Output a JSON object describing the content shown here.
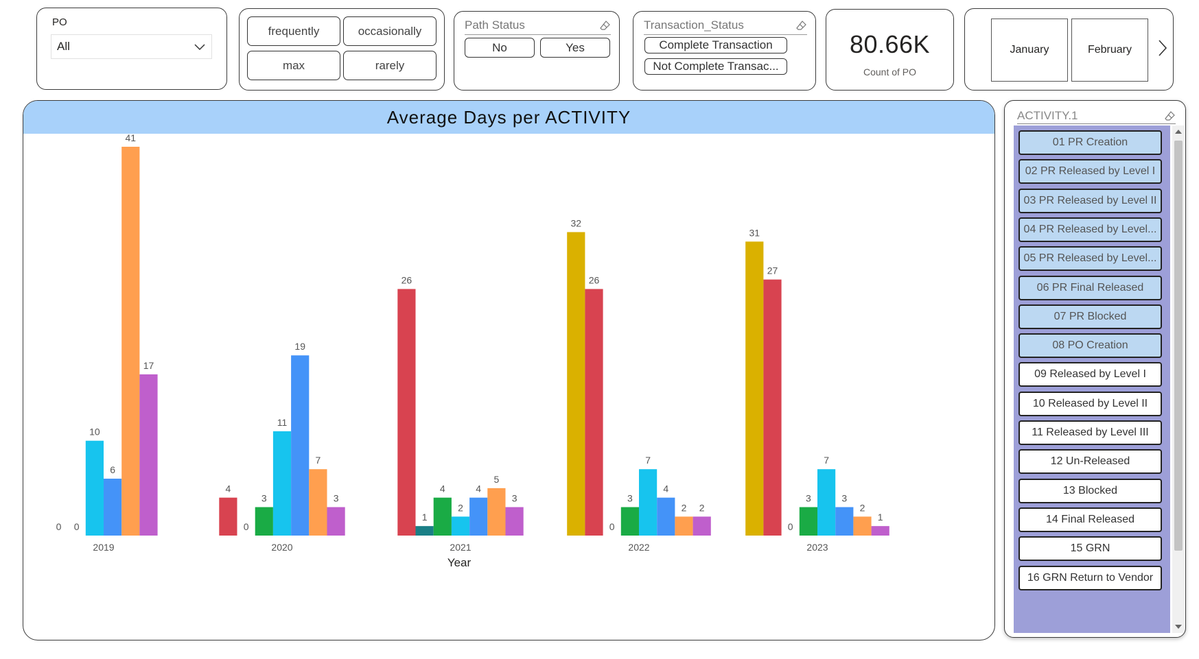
{
  "po_filter": {
    "label": "PO",
    "value": "All"
  },
  "frequency_buttons": [
    "frequently",
    "occasionally",
    "max",
    "rarely"
  ],
  "path_status": {
    "title": "Path Status",
    "options": [
      "No",
      "Yes"
    ]
  },
  "transaction_status": {
    "title": "Transaction_Status",
    "options": [
      "Complete Transaction",
      "Not Complete Transac..."
    ]
  },
  "kpi": {
    "value": "80.66K",
    "label": "Count of PO"
  },
  "months": [
    "January",
    "February"
  ],
  "activity_panel": {
    "title": "ACTIVITY.1",
    "items": [
      {
        "label": "01 PR Creation",
        "selected": true
      },
      {
        "label": "02 PR Released by Level I",
        "selected": true
      },
      {
        "label": "03 PR Released by Level II",
        "selected": true
      },
      {
        "label": "04 PR Released by Level...",
        "selected": true
      },
      {
        "label": "05 PR Released by Level...",
        "selected": true
      },
      {
        "label": "06 PR Final Released",
        "selected": true
      },
      {
        "label": "07 PR Blocked",
        "selected": true
      },
      {
        "label": "08 PO Creation",
        "selected": true
      },
      {
        "label": "09 Released by Level I",
        "selected": false
      },
      {
        "label": "10 Released by Level II",
        "selected": false
      },
      {
        "label": "11 Released by Level III",
        "selected": false
      },
      {
        "label": "12 Un-Released",
        "selected": false
      },
      {
        "label": "13 Blocked",
        "selected": false
      },
      {
        "label": "14 Final Released",
        "selected": false
      },
      {
        "label": "15 GRN",
        "selected": false
      },
      {
        "label": "16 GRN Return to Vendor",
        "selected": false
      }
    ],
    "selected_color": "#bcd8f2",
    "unselected_color": "#ffffff"
  },
  "chart_data": {
    "type": "bar",
    "title": "Average Days per ACTIVITY",
    "xlabel": "Year",
    "ylabel": "",
    "categories": [
      "2019",
      "2020",
      "2021",
      "2022",
      "2023"
    ],
    "groups": [
      {
        "category": "2019",
        "bars": [
          {
            "value": 0,
            "color": "#1a7f86"
          },
          {
            "value": 0,
            "color": "#1aab45"
          },
          {
            "value": 10,
            "color": "#17c4ee"
          },
          {
            "value": 6,
            "color": "#4493f8"
          },
          {
            "value": 41,
            "color": "#ff9f4f"
          },
          {
            "value": 17,
            "color": "#bf5fcc"
          }
        ]
      },
      {
        "category": "2020",
        "bars": [
          {
            "value": 4,
            "color": "#d84350"
          },
          {
            "value": 0,
            "color": "#1a7f86"
          },
          {
            "value": 3,
            "color": "#1aab45"
          },
          {
            "value": 11,
            "color": "#17c4ee"
          },
          {
            "value": 19,
            "color": "#4493f8"
          },
          {
            "value": 7,
            "color": "#ff9f4f"
          },
          {
            "value": 3,
            "color": "#bf5fcc"
          }
        ]
      },
      {
        "category": "2021",
        "bars": [
          {
            "value": 26,
            "color": "#d84350"
          },
          {
            "value": 1,
            "color": "#1a7f86"
          },
          {
            "value": 4,
            "color": "#1aab45"
          },
          {
            "value": 2,
            "color": "#17c4ee"
          },
          {
            "value": 4,
            "color": "#4493f8"
          },
          {
            "value": 5,
            "color": "#ff9f4f"
          },
          {
            "value": 3,
            "color": "#bf5fcc"
          }
        ]
      },
      {
        "category": "2022",
        "bars": [
          {
            "value": 32,
            "color": "#dab100"
          },
          {
            "value": 26,
            "color": "#d84350"
          },
          {
            "value": 0,
            "color": "#1a7f86"
          },
          {
            "value": 3,
            "color": "#1aab45"
          },
          {
            "value": 7,
            "color": "#17c4ee"
          },
          {
            "value": 4,
            "color": "#4493f8"
          },
          {
            "value": 2,
            "color": "#ff9f4f"
          },
          {
            "value": 2,
            "color": "#bf5fcc"
          }
        ]
      },
      {
        "category": "2023",
        "bars": [
          {
            "value": 31,
            "color": "#dab100"
          },
          {
            "value": 27,
            "color": "#d84350"
          },
          {
            "value": 0,
            "color": "#1a7f86"
          },
          {
            "value": 3,
            "color": "#1aab45"
          },
          {
            "value": 7,
            "color": "#17c4ee"
          },
          {
            "value": 3,
            "color": "#4493f8"
          },
          {
            "value": 2,
            "color": "#ff9f4f"
          },
          {
            "value": 1,
            "color": "#bf5fcc"
          }
        ]
      }
    ],
    "ylim": [
      0,
      41
    ],
    "grid": false,
    "header_color": "#a8d1fa"
  }
}
